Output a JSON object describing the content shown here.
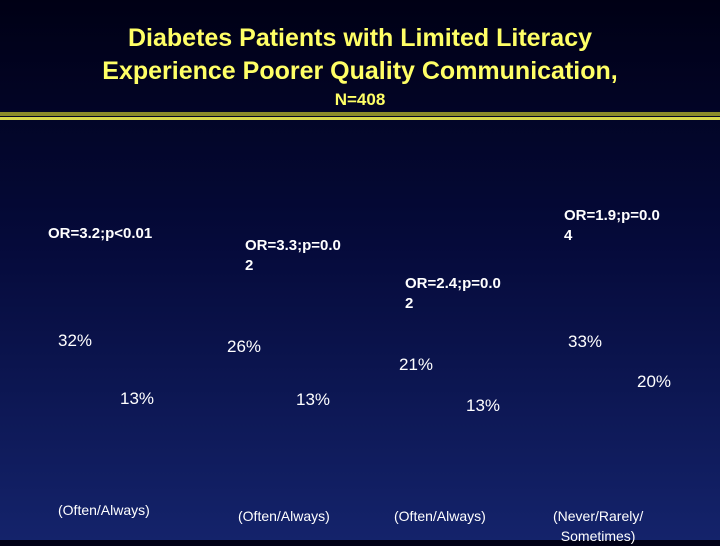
{
  "chart_data": {
    "type": "bar",
    "title_lines": [
      "Diabetes Patients with Limited Literacy",
      "Experience Poorer Quality Communication,"
    ],
    "subtitle": "N=408",
    "categories": [
      [
        "(Often/Always)"
      ],
      [
        "(Often/Always)"
      ],
      [
        "(Often/Always)"
      ],
      [
        "(Never/Rarely/",
        "Sometimes)"
      ]
    ],
    "series_values": {
      "first": [
        "32%",
        "26%",
        "21%",
        "33%"
      ],
      "second": [
        "13%",
        "13%",
        "13%",
        "20%"
      ]
    },
    "annotations": [
      [
        "OR=3.2;p<0.01"
      ],
      [
        "OR=3.3;p=0.0",
        "2"
      ],
      [
        "OR=2.4;p=0.0",
        "2"
      ],
      [
        "OR=1.9;p=0.0",
        "4"
      ]
    ]
  },
  "colors": {
    "title": "#ffff66",
    "text": "#ffffff",
    "rule_dark": "#8c8c2a",
    "rule_light": "#d8d84a"
  }
}
